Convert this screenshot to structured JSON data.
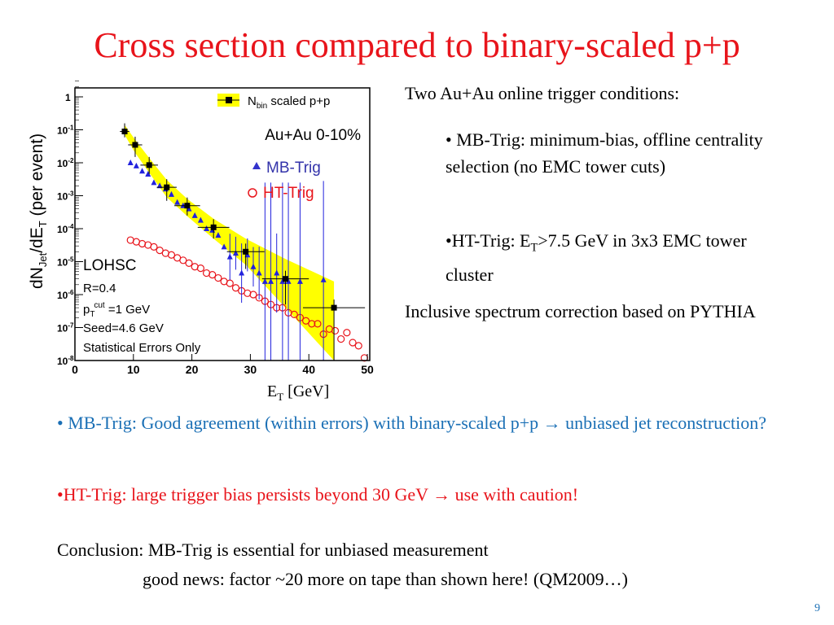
{
  "title": "Cross section compared to binary-scaled p+p",
  "right_text": {
    "heading": "Two Au+Au online trigger conditions:",
    "mb": "• MB-Trig:  minimum-bias, offline centrality selection (no EMC tower cuts)",
    "ht_pre": "•HT-Trig: E",
    "ht_sub": "T",
    "ht_post": ">7.5 GeV in 3x3 EMC tower cluster",
    "inclusive": "Inclusive spectrum correction based on PYTHIA"
  },
  "bullets": {
    "mb": "• MB-Trig: Good agreement (within errors) with binary-scaled p+p → unbiased jet reconstruction?",
    "ht": "•HT-Trig: large trigger bias persists  beyond 30 GeV → use with caution!",
    "conclusion": "Conclusion: MB-Trig is essential for unbiased measurement",
    "news": "good news: factor ~20 more on tape than shown here! (QM2009…)"
  },
  "page_number": "9",
  "colors": {
    "title": "#e8141b",
    "blue_text": "#1a6fb5",
    "band": "#ffff00",
    "mb": "#2222dd",
    "ht": "#e8141b"
  },
  "chart_data": {
    "type": "scatter",
    "ylabel": "dN_Jet/dE_T (per event)",
    "ylabel_parts": {
      "a": "dN",
      "b": "Jet",
      "c": "/dE",
      "d": "T",
      "e": " (per event)"
    },
    "xlabel": "E_T [GeV]",
    "xlabel_parts": {
      "a": "E",
      "b": "T",
      "c": " [GeV]"
    },
    "xlim": [
      0,
      50
    ],
    "ylim": [
      1e-08,
      3
    ],
    "yscale": "log",
    "x_ticks": [
      "0",
      "10",
      "20",
      "30",
      "40",
      "50"
    ],
    "y_ticks": [
      {
        "base": "1",
        "exp": ""
      },
      {
        "base": "10",
        "exp": "-1"
      },
      {
        "base": "10",
        "exp": "-2"
      },
      {
        "base": "10",
        "exp": "-3"
      },
      {
        "base": "10",
        "exp": "-4"
      },
      {
        "base": "10",
        "exp": "-5"
      },
      {
        "base": "10",
        "exp": "-6"
      },
      {
        "base": "10",
        "exp": "-7"
      },
      {
        "base": "10",
        "exp": "-8"
      }
    ],
    "legend": {
      "pp_a": "N",
      "pp_b": "bin",
      "pp_c": " scaled p+p",
      "system": "Au+Au 0-10%",
      "mb": "MB-Trig",
      "ht": "HT-Trig",
      "placement": "top-right"
    },
    "annotations": {
      "algo": "LOHSC",
      "r": "R=0.4",
      "pt_a": "p",
      "pt_b": "T",
      "pt_c": "cut",
      "pt_d": " =1 GeV",
      "seed": "Seed=4.6 GeV",
      "errors": "Statistical Errors Only"
    },
    "series": [
      {
        "name": "Nbin scaled p+p",
        "x": [
          8.5,
          10.3,
          12.7,
          15.7,
          19.2,
          23.7,
          29.2,
          36,
          44.3
        ],
        "xerr": [
          0.8,
          1.2,
          1.5,
          1.7,
          2.2,
          2.7,
          3.2,
          4,
          5.3
        ],
        "y": [
          0.089,
          0.035,
          0.0085,
          0.0018,
          0.0005,
          0.00011,
          2e-05,
          3e-06,
          4e-07
        ],
        "yerr_lo": [
          0.03,
          0.02,
          0.004,
          0.0011,
          0.00025,
          6e-05,
          1.4e-05,
          2.5e-06,
          3.9e-07
        ],
        "band_hi": [
          0.14,
          0.05,
          0.014,
          0.003,
          0.0008,
          0.0002,
          5e-05,
          1.2e-05,
          2.5e-06
        ],
        "band_lo": [
          0.07,
          0.02,
          0.005,
          0.0009,
          0.00024,
          5e-05,
          8e-06,
          4e-07,
          1e-08
        ]
      },
      {
        "name": "MB-Trig",
        "x": [
          9.5,
          10.5,
          11.5,
          12.5,
          13.5,
          14.5,
          15.5,
          16.5,
          17.5,
          18.5,
          19.5,
          20.5,
          21.5,
          22.5,
          23.5,
          24.5,
          25.5,
          26.5,
          27.5,
          28.5,
          29.5,
          30.5,
          31.5,
          32.5,
          33.5,
          34.5,
          35.5,
          36.5,
          38.5,
          42.5
        ],
        "y": [
          0.01,
          0.008,
          0.0056,
          0.0045,
          0.0025,
          0.002,
          0.0016,
          0.0011,
          0.00063,
          0.0005,
          0.0004,
          0.00025,
          0.00018,
          0.0001,
          9e-05,
          6.3e-05,
          2.8e-05,
          1.4e-05,
          1.8e-05,
          4.5e-06,
          1.6e-05,
          7e-06,
          4.5e-06,
          2.5e-06,
          2.5e-06,
          4.5e-06,
          2.5e-06,
          2.5e-06,
          2.5e-06,
          2.8e-06
        ],
        "yerr": [
          0,
          0,
          0,
          0,
          0,
          0,
          0,
          0,
          0,
          0,
          0,
          0,
          0,
          0,
          0,
          0,
          0,
          0.7,
          0.5,
          0.9,
          0.5,
          0.6,
          0.8,
          3,
          3,
          1.2,
          3,
          3,
          3,
          3
        ]
      },
      {
        "name": "HT-Trig",
        "x": [
          9.5,
          10.5,
          11.5,
          12.5,
          13.5,
          14.5,
          15.5,
          16.5,
          17.5,
          18.5,
          19.5,
          20.5,
          21.5,
          22.5,
          23.5,
          24.5,
          25.5,
          26.5,
          27.5,
          28.5,
          29.5,
          30.5,
          31.5,
          32.5,
          33.5,
          34.5,
          35.5,
          36.5,
          37.5,
          38.5,
          39.5,
          40.5,
          41.5,
          42.5,
          43.5,
          44.5,
          45.5,
          46.5,
          47.5,
          48.5,
          49.5
        ],
        "y": [
          4.5e-05,
          4e-05,
          3.5e-05,
          3.2e-05,
          2.8e-05,
          2.2e-05,
          1.8e-05,
          1.6e-05,
          1.3e-05,
          1.1e-05,
          9e-06,
          7e-06,
          6.3e-06,
          4.5e-06,
          4e-06,
          3.2e-06,
          2.5e-06,
          2.2e-06,
          1.6e-06,
          1.3e-06,
          1.1e-06,
          1e-06,
          8e-07,
          6.3e-07,
          5e-07,
          4e-07,
          4e-07,
          2.8e-07,
          2.5e-07,
          2e-07,
          1.6e-07,
          1.3e-07,
          1.3e-07,
          6.3e-08,
          9e-08,
          8e-08,
          4.5e-08,
          7e-08,
          3.5e-08,
          2.8e-08,
          1.2e-08
        ]
      }
    ]
  }
}
